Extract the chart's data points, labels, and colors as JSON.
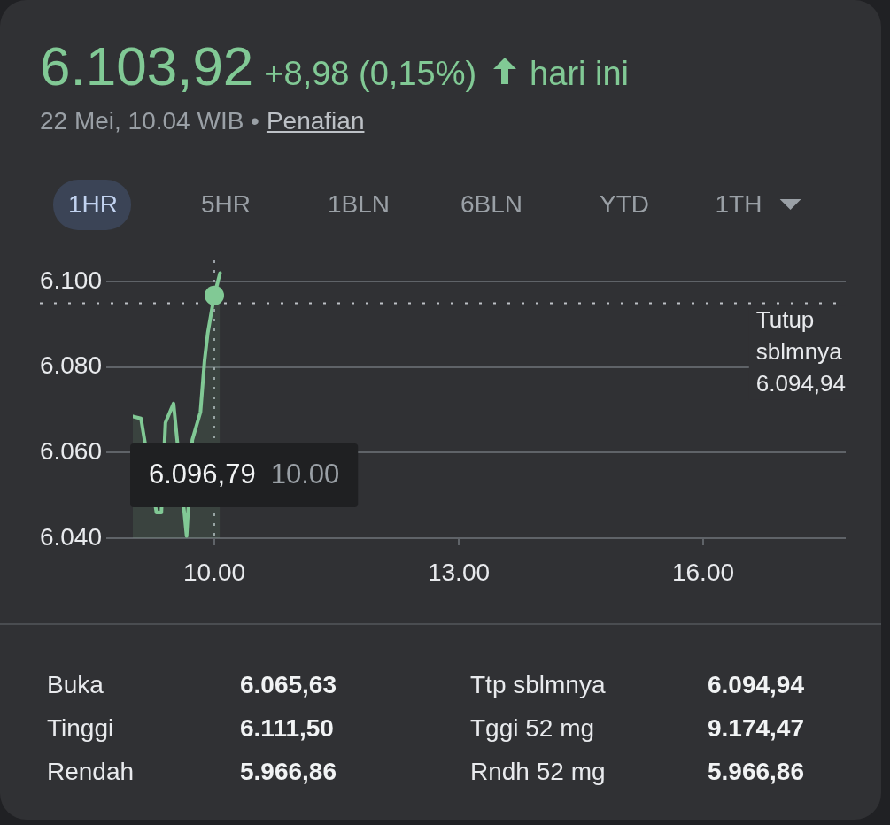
{
  "chart_data": {
    "type": "area",
    "title": "6.103,92",
    "x": [
      9,
      9.1,
      9.29,
      9.35,
      9.4,
      9.5,
      9.66,
      9.73,
      9.83,
      9.88,
      9.92,
      10,
      10.07
    ],
    "series": [
      {
        "color": "#81c995",
        "values": [
          6068.5,
          6068,
          6046,
          6046,
          6067,
          6071.5,
          6040.5,
          6063,
          6069.5,
          6081.5,
          6088,
          6096.79,
          6102
        ]
      },
      {
        "type": "scatter",
        "color": "#81c995",
        "x": [
          10
        ],
        "values": [
          6096.79
        ]
      }
    ],
    "xlim": [
      9,
      17.75
    ],
    "xticks": [
      {
        "value": 10,
        "label": "10.00"
      },
      {
        "value": 13,
        "label": "13.00"
      },
      {
        "value": 16,
        "label": "16.00"
      }
    ],
    "ylim": [
      6040,
      6105
    ],
    "yticks": [
      {
        "value": 6040,
        "label": "6.040"
      },
      {
        "value": 6060,
        "label": "6.060"
      },
      {
        "value": 6080,
        "label": "6.080"
      },
      {
        "value": 6100,
        "label": "6.100"
      }
    ],
    "grid": "y",
    "ref_lines": [
      {
        "axis": "y",
        "value": 6094.94,
        "label": "Tutup sblmnya 6.094,94",
        "line_style": "dotted"
      },
      {
        "axis": "x",
        "value": 10,
        "line_style": "dotted"
      }
    ],
    "annotations": [
      "+8,98 (0,15%)",
      "hari ini",
      "22 Mei, 10.04 WIB •",
      "Penafian",
      "1HR",
      "5HR",
      "1BLN",
      "6BLN",
      "YTD",
      "1TH",
      "Buka",
      "6.065,63",
      "Ttp sblmnya",
      "6.094,94",
      "Tinggi",
      "6.111,50",
      "Tggi 52 mg",
      "9.174,47",
      "Rendah",
      "5.966,86",
      "Rndh 52 mg",
      "5.966,86",
      "6.096,79 10.00"
    ]
  }
}
